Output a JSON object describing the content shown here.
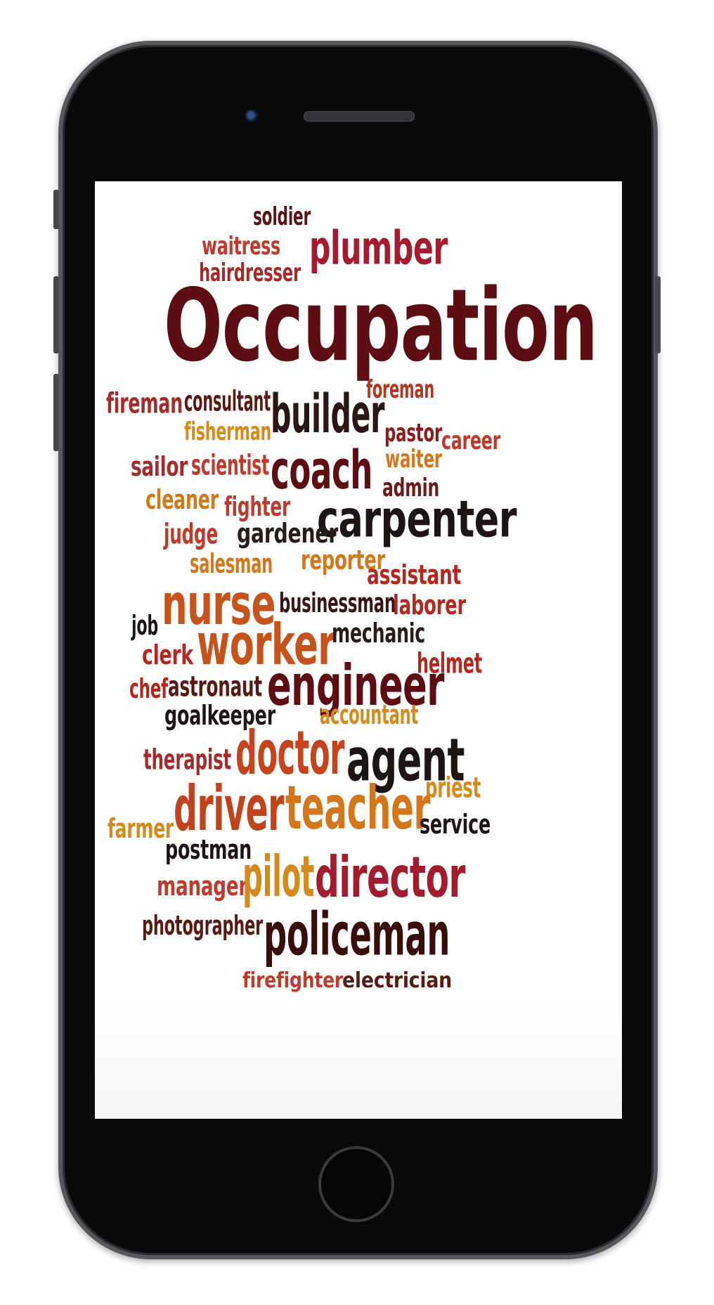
{
  "device": {
    "type": "smartphone"
  },
  "word_cloud": {
    "words": [
      {
        "text": "soldier",
        "color": "#5a1212"
      },
      {
        "text": "waitress",
        "color": "#c0392b"
      },
      {
        "text": "hairdresser",
        "color": "#a52a2a"
      },
      {
        "text": "plumber",
        "color": "#a31b2f"
      },
      {
        "text": "Occupation",
        "color": "#5e0d12"
      },
      {
        "text": "foreman",
        "color": "#b5361f"
      },
      {
        "text": "fireman",
        "color": "#a32b2b"
      },
      {
        "text": "consultant",
        "color": "#5a1a14"
      },
      {
        "text": "builder",
        "color": "#2b1515"
      },
      {
        "text": "fisherman",
        "color": "#d78a1c"
      },
      {
        "text": "pastor",
        "color": "#8a1e1e"
      },
      {
        "text": "career",
        "color": "#c0392b"
      },
      {
        "text": "sailor",
        "color": "#a32b2b"
      },
      {
        "text": "scientist",
        "color": "#c0392b"
      },
      {
        "text": "coach",
        "color": "#5e0d12"
      },
      {
        "text": "waiter",
        "color": "#d4771a"
      },
      {
        "text": "admin",
        "color": "#6b1a1a"
      },
      {
        "text": "cleaner",
        "color": "#d4771a"
      },
      {
        "text": "fighter",
        "color": "#c0392b"
      },
      {
        "text": "carpenter",
        "color": "#1e1414"
      },
      {
        "text": "judge",
        "color": "#c0392b"
      },
      {
        "text": "gardener",
        "color": "#2b1a1a"
      },
      {
        "text": "salesman",
        "color": "#d4771a"
      },
      {
        "text": "reporter",
        "color": "#d4771a"
      },
      {
        "text": "assistant",
        "color": "#b5261f"
      },
      {
        "text": "nurse",
        "color": "#c6531b"
      },
      {
        "text": "businessman",
        "color": "#3a1414"
      },
      {
        "text": "laborer",
        "color": "#b5261f"
      },
      {
        "text": "job",
        "color": "#1e1414"
      },
      {
        "text": "worker",
        "color": "#c6531b"
      },
      {
        "text": "mechanic",
        "color": "#2b1a1a"
      },
      {
        "text": "clerk",
        "color": "#b5261f"
      },
      {
        "text": "helmet",
        "color": "#b5261f"
      },
      {
        "text": "chef",
        "color": "#b5261f"
      },
      {
        "text": "astronaut",
        "color": "#5a1a14"
      },
      {
        "text": "engineer",
        "color": "#5e0d12"
      },
      {
        "text": "goalkeeper",
        "color": "#1e1414"
      },
      {
        "text": "accountant",
        "color": "#d78a1c"
      },
      {
        "text": "therapist",
        "color": "#a32b2b"
      },
      {
        "text": "doctor",
        "color": "#c6431b"
      },
      {
        "text": "agent",
        "color": "#1e1414"
      },
      {
        "text": "priest",
        "color": "#d78a1c"
      },
      {
        "text": "driver",
        "color": "#c0431b"
      },
      {
        "text": "teacher",
        "color": "#d4771a"
      },
      {
        "text": "farmer",
        "color": "#d78a1c"
      },
      {
        "text": "service",
        "color": "#1e1414"
      },
      {
        "text": "postman",
        "color": "#1e1414"
      },
      {
        "text": "manager",
        "color": "#c0392b"
      },
      {
        "text": "pilot",
        "color": "#d78a1c"
      },
      {
        "text": "director",
        "color": "#a31b2f"
      },
      {
        "text": "photographer",
        "color": "#5a1a14"
      },
      {
        "text": "policeman",
        "color": "#3a0d0d"
      },
      {
        "text": "firefighter",
        "color": "#c0392b"
      },
      {
        "text": "electrician",
        "color": "#5a1a14"
      }
    ]
  }
}
